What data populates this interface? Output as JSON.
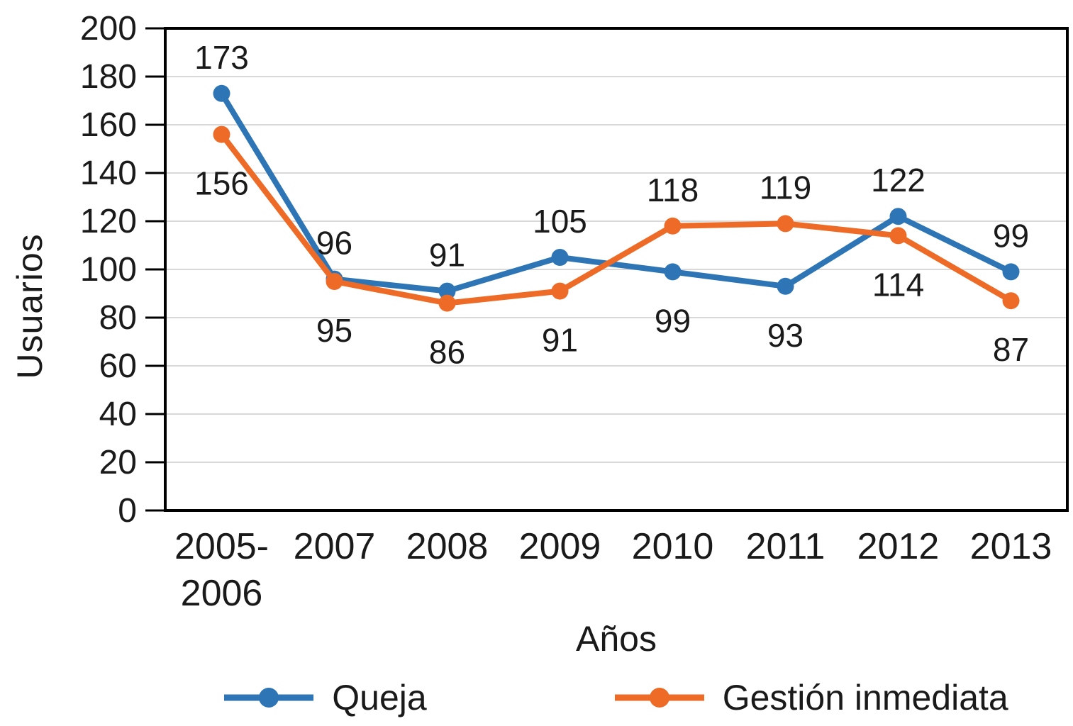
{
  "chart_data": {
    "type": "line",
    "title": "",
    "xlabel": "Años",
    "ylabel": "Usuarios",
    "categories": [
      "2005-\n2006",
      "2007",
      "2008",
      "2009",
      "2010",
      "2011",
      "2012",
      "2013"
    ],
    "series": [
      {
        "name": "Queja",
        "color": "#2E75B6",
        "values": [
          173,
          96,
          91,
          105,
          99,
          93,
          122,
          99
        ]
      },
      {
        "name": "Gestión inmediata",
        "color": "#ED6B26",
        "values": [
          156,
          95,
          86,
          91,
          118,
          119,
          114,
          87
        ]
      }
    ],
    "ylim": [
      0,
      200
    ],
    "y_tick_step": 20,
    "y_tick_labels": [
      "0",
      "20",
      "40",
      "60",
      "80",
      "100",
      "120",
      "140",
      "160",
      "180",
      "200"
    ],
    "grid": true,
    "data_labels": true,
    "legend_position": "bottom",
    "marker": "circle"
  },
  "styles": {
    "grid_color": "#D9D9D9",
    "axis_color": "#000000",
    "text_color": "#1A1A1A",
    "background": "#FFFFFF"
  }
}
